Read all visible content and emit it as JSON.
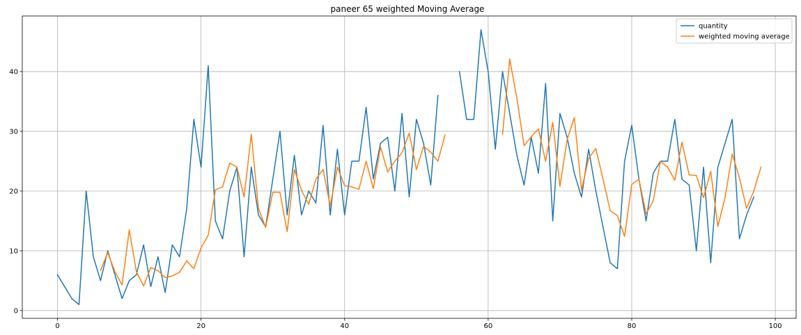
{
  "chart_data": {
    "type": "line",
    "title": "paneer 65 weighted Moving Average",
    "xlabel": "",
    "ylabel": "",
    "xlim": [
      -4.9,
      102.9
    ],
    "ylim": [
      -1.3,
      49.3
    ],
    "xticks": [
      0,
      20,
      40,
      60,
      80,
      100
    ],
    "yticks": [
      0,
      10,
      20,
      30,
      40
    ],
    "grid": true,
    "legend_position": "top-right",
    "series": [
      {
        "name": "quantity",
        "color": "#1f77b4",
        "points": [
          [
            0,
            6
          ],
          [
            1,
            4
          ],
          [
            2,
            2
          ],
          [
            3,
            1
          ],
          [
            4,
            20
          ],
          [
            5,
            9
          ],
          [
            6,
            5
          ],
          [
            7,
            10
          ],
          [
            8,
            6
          ],
          [
            9,
            2
          ],
          [
            10,
            5
          ],
          [
            11,
            6
          ],
          [
            12,
            11
          ],
          [
            13,
            4
          ],
          [
            14,
            9
          ],
          [
            15,
            3
          ],
          [
            16,
            11
          ],
          [
            17,
            9
          ],
          [
            18,
            17
          ],
          [
            19,
            32
          ],
          [
            20,
            24
          ],
          [
            21,
            41
          ],
          [
            22,
            15
          ],
          [
            23,
            12
          ],
          [
            24,
            20
          ],
          [
            25,
            24
          ],
          [
            26,
            9
          ],
          [
            27,
            24
          ],
          [
            28,
            16
          ],
          [
            29,
            14
          ],
          [
            30,
            22
          ],
          [
            31,
            30
          ],
          [
            32,
            16
          ],
          [
            33,
            26
          ],
          [
            34,
            16
          ],
          [
            35,
            20
          ],
          [
            36,
            18
          ],
          [
            37,
            31
          ],
          [
            38,
            16
          ],
          [
            39,
            27
          ],
          [
            40,
            16
          ],
          [
            41,
            25
          ],
          [
            42,
            25
          ],
          [
            43,
            34
          ],
          [
            44,
            22
          ],
          [
            45,
            28
          ],
          [
            46,
            29
          ],
          [
            47,
            20
          ],
          [
            48,
            33
          ],
          [
            49,
            19
          ],
          [
            50,
            32
          ],
          [
            51,
            28
          ],
          [
            52,
            21
          ],
          [
            53,
            36
          ],
          null,
          [
            56,
            40
          ],
          [
            57,
            32
          ],
          [
            58,
            32
          ],
          [
            59,
            47
          ],
          [
            60,
            40
          ],
          [
            61,
            27
          ],
          [
            62,
            40
          ],
          [
            63,
            33
          ],
          [
            64,
            26
          ],
          [
            65,
            21
          ],
          [
            66,
            29
          ],
          [
            67,
            23
          ],
          [
            68,
            38
          ],
          [
            69,
            15
          ],
          [
            70,
            33
          ],
          [
            71,
            29
          ],
          [
            72,
            23
          ],
          [
            73,
            19
          ],
          [
            74,
            27
          ],
          [
            75,
            20
          ],
          [
            76,
            14
          ],
          [
            77,
            8
          ],
          [
            78,
            7
          ],
          [
            79,
            25
          ],
          [
            80,
            31
          ],
          [
            81,
            22
          ],
          [
            82,
            15
          ],
          [
            83,
            23
          ],
          [
            84,
            25
          ],
          [
            85,
            25
          ],
          [
            86,
            32
          ],
          [
            87,
            22
          ],
          [
            88,
            21
          ],
          [
            89,
            10
          ],
          [
            90,
            24
          ],
          [
            91,
            8
          ],
          [
            92,
            24
          ],
          [
            93,
            28
          ],
          [
            94,
            32
          ],
          [
            95,
            12
          ],
          [
            96,
            16
          ],
          [
            97,
            19
          ]
        ]
      },
      {
        "name": "weighted moving average",
        "color": "#ff7f0e",
        "points": [
          [
            6,
            6.7
          ],
          [
            7,
            9.7
          ],
          [
            8,
            6.5
          ],
          [
            9,
            4.3
          ],
          [
            10,
            13.5
          ],
          [
            11,
            6.5
          ],
          [
            12,
            4.1
          ],
          [
            13,
            7.2
          ],
          [
            14,
            6.7
          ],
          [
            15,
            5.5
          ],
          [
            16,
            5.8
          ],
          [
            17,
            6.4
          ],
          [
            18,
            8.3
          ],
          [
            19,
            7
          ],
          [
            20,
            10.5
          ],
          [
            21,
            12.6
          ],
          [
            22,
            20.2
          ],
          [
            23,
            20.7
          ],
          [
            24,
            24.7
          ],
          [
            25,
            24
          ],
          [
            26,
            19
          ],
          [
            27,
            29.5
          ],
          [
            28,
            17.1
          ],
          [
            29,
            13.9
          ],
          [
            30,
            19.8
          ],
          [
            31,
            19.8
          ],
          [
            32,
            13.2
          ],
          [
            33,
            23.6
          ],
          [
            34,
            20.1
          ],
          [
            35,
            17.8
          ],
          [
            36,
            22
          ],
          [
            37,
            23.6
          ],
          [
            38,
            17.5
          ],
          [
            39,
            24
          ],
          [
            40,
            20.9
          ],
          [
            41,
            20.7
          ],
          [
            42,
            20.3
          ],
          [
            43,
            25
          ],
          [
            44,
            20.4
          ],
          [
            45,
            27.4
          ],
          [
            46,
            23.2
          ],
          [
            47,
            25
          ],
          [
            48,
            26.4
          ],
          [
            49,
            29.7
          ],
          [
            50,
            23.6
          ],
          [
            51,
            27.5
          ],
          [
            52,
            26.5
          ],
          [
            53,
            25
          ],
          [
            54,
            29.4
          ],
          null,
          [
            62,
            29.5
          ],
          [
            63,
            42.1
          ],
          [
            64,
            35.5
          ],
          [
            65,
            27.6
          ],
          [
            66,
            29.1
          ],
          [
            67,
            30.4
          ],
          [
            68,
            25
          ],
          [
            69,
            31.5
          ],
          [
            70,
            20.8
          ],
          [
            71,
            28.6
          ],
          [
            72,
            32.3
          ],
          [
            73,
            20.2
          ],
          [
            74,
            25.5
          ],
          [
            75,
            27.1
          ],
          [
            76,
            22
          ],
          [
            77,
            16.7
          ],
          [
            78,
            15.9
          ],
          [
            79,
            12.4
          ],
          [
            80,
            21.1
          ],
          [
            81,
            22
          ],
          [
            82,
            16.2
          ],
          [
            83,
            18.4
          ],
          [
            84,
            25
          ],
          [
            85,
            24
          ],
          [
            86,
            21.8
          ],
          [
            87,
            28.2
          ],
          [
            88,
            22.7
          ],
          [
            89,
            22.6
          ],
          [
            90,
            18.9
          ],
          [
            91,
            23.3
          ],
          [
            92,
            14.1
          ],
          [
            93,
            18.9
          ],
          [
            94,
            26.2
          ],
          [
            95,
            22.2
          ],
          [
            96,
            17.1
          ],
          [
            97,
            20
          ],
          [
            98,
            24
          ]
        ]
      }
    ]
  }
}
